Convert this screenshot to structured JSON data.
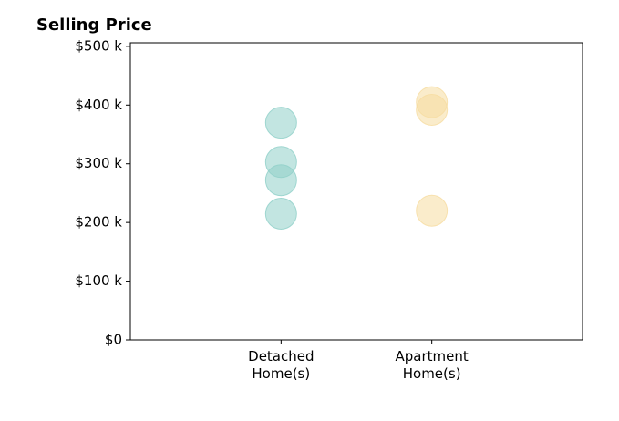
{
  "chart_data": {
    "type": "scatter",
    "title": "Selling Price",
    "groups": [
      {
        "category": "Detached Home(s)",
        "color": "#8fd0c8",
        "values": [
          370000,
          303000,
          272000,
          215000
        ]
      },
      {
        "category": "Apartment Home(s)",
        "color": "#f6dca0",
        "values": [
          405000,
          392000,
          220000
        ]
      }
    ],
    "xlim": [
      -1,
      2
    ],
    "ylim": [
      0,
      506000
    ],
    "yticks": [
      {
        "value": 0,
        "label": "$0"
      },
      {
        "value": 100000,
        "label": "$100 k"
      },
      {
        "value": 200000,
        "label": "$200 k"
      },
      {
        "value": 300000,
        "label": "$300 k"
      },
      {
        "value": 400000,
        "label": "$400 k"
      },
      {
        "value": 500000,
        "label": "$500 k"
      }
    ],
    "marker_opacity": 0.55
  }
}
